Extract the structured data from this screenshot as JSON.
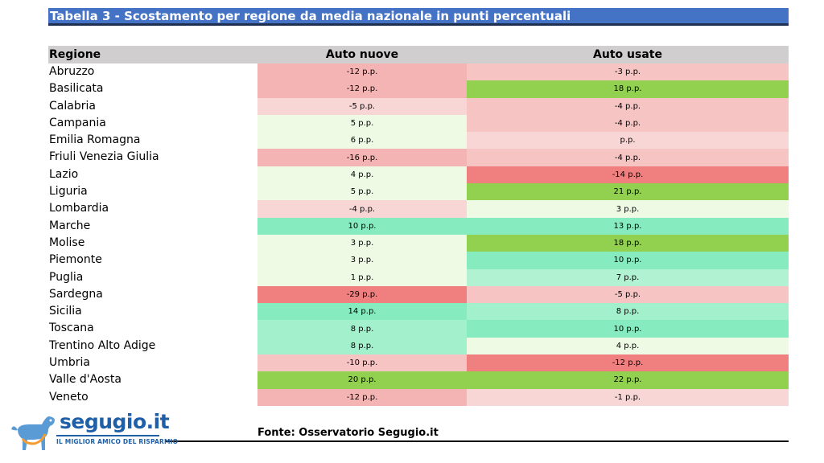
{
  "title": "Tabella 3 - Scostamento per regione da media nazionale in punti percentuali",
  "table": {
    "headers": [
      "Regione",
      "Auto nuove",
      "Auto usate"
    ],
    "rows": [
      {
        "region": "Abruzzo",
        "new": "-12 p.p.",
        "used": "-3 p.p.",
        "new_color": "#f4b4b4",
        "used_color": "#f7c4c4"
      },
      {
        "region": "Basilicata",
        "new": "-12 p.p.",
        "used": "18 p.p.",
        "new_color": "#f4b4b4",
        "used_color": "#92d050"
      },
      {
        "region": "Calabria",
        "new": "-5 p.p.",
        "used": "-4 p.p.",
        "new_color": "#f9d6d6",
        "used_color": "#f7c4c4"
      },
      {
        "region": "Campania",
        "new": "5 p.p.",
        "used": "-4 p.p.",
        "new_color": "#eefae4",
        "used_color": "#f7c4c4"
      },
      {
        "region": "Emilia Romagna",
        "new": "6 p.p.",
        "used": "p.p.",
        "new_color": "#eefae4",
        "used_color": "#f9d6d6"
      },
      {
        "region": "Friuli Venezia Giulia",
        "new": "-16 p.p.",
        "used": "-4 p.p.",
        "new_color": "#f4b4b4",
        "used_color": "#f7c4c4"
      },
      {
        "region": "Lazio",
        "new": "4 p.p.",
        "used": "-14 p.p.",
        "new_color": "#eefae4",
        "used_color": "#f08080"
      },
      {
        "region": "Liguria",
        "new": "5 p.p.",
        "used": "21 p.p.",
        "new_color": "#eefae4",
        "used_color": "#92d050"
      },
      {
        "region": "Lombardia",
        "new": "-4 p.p.",
        "used": "3 p.p.",
        "new_color": "#f9d6d6",
        "used_color": "#eefae4"
      },
      {
        "region": "Marche",
        "new": "10 p.p.",
        "used": "13 p.p.",
        "new_color": "#86ecbf",
        "used_color": "#86ecbf"
      },
      {
        "region": "Molise",
        "new": "3 p.p.",
        "used": "18 p.p.",
        "new_color": "#eefae4",
        "used_color": "#92d050"
      },
      {
        "region": "Piemonte",
        "new": "3 p.p.",
        "used": "10 p.p.",
        "new_color": "#eefae4",
        "used_color": "#86ecbf"
      },
      {
        "region": "Puglia",
        "new": "1 p.p.",
        "used": "7 p.p.",
        "new_color": "#eefae4",
        "used_color": "#b0f2d2"
      },
      {
        "region": "Sardegna",
        "new": "-29 p.p.",
        "used": "-5 p.p.",
        "new_color": "#f08080",
        "used_color": "#f7c4c4"
      },
      {
        "region": "Sicilia",
        "new": "14 p.p.",
        "used": "8 p.p.",
        "new_color": "#86ecbf",
        "used_color": "#a2f0cc"
      },
      {
        "region": "Toscana",
        "new": "8 p.p.",
        "used": "10 p.p.",
        "new_color": "#a2f0cc",
        "used_color": "#86ecbf"
      },
      {
        "region": "Trentino Alto Adige",
        "new": "8 p.p.",
        "used": "4 p.p.",
        "new_color": "#a2f0cc",
        "used_color": "#eefae4"
      },
      {
        "region": "Umbria",
        "new": "-10 p.p.",
        "used": "-12 p.p.",
        "new_color": "#f7c4c4",
        "used_color": "#f08080"
      },
      {
        "region": "Valle d'Aosta",
        "new": "20 p.p.",
        "used": "22 p.p.",
        "new_color": "#92d050",
        "used_color": "#92d050"
      },
      {
        "region": "Veneto",
        "new": "-12 p.p.",
        "used": "-1 p.p.",
        "new_color": "#f4b4b4",
        "used_color": "#f9d6d6"
      }
    ]
  },
  "source": "Fonte: Osservatorio Segugio.it",
  "logo": {
    "name": "segugio.it",
    "tagline": "IL MIGLIOR AMICO DEL RISPARMIO",
    "icon": "dog-icon",
    "color": "#1f5fa8",
    "icon_color": "#5b9bd5"
  },
  "colors": {
    "title_bg": "#4472c4",
    "header_bg": "#d0cece"
  }
}
